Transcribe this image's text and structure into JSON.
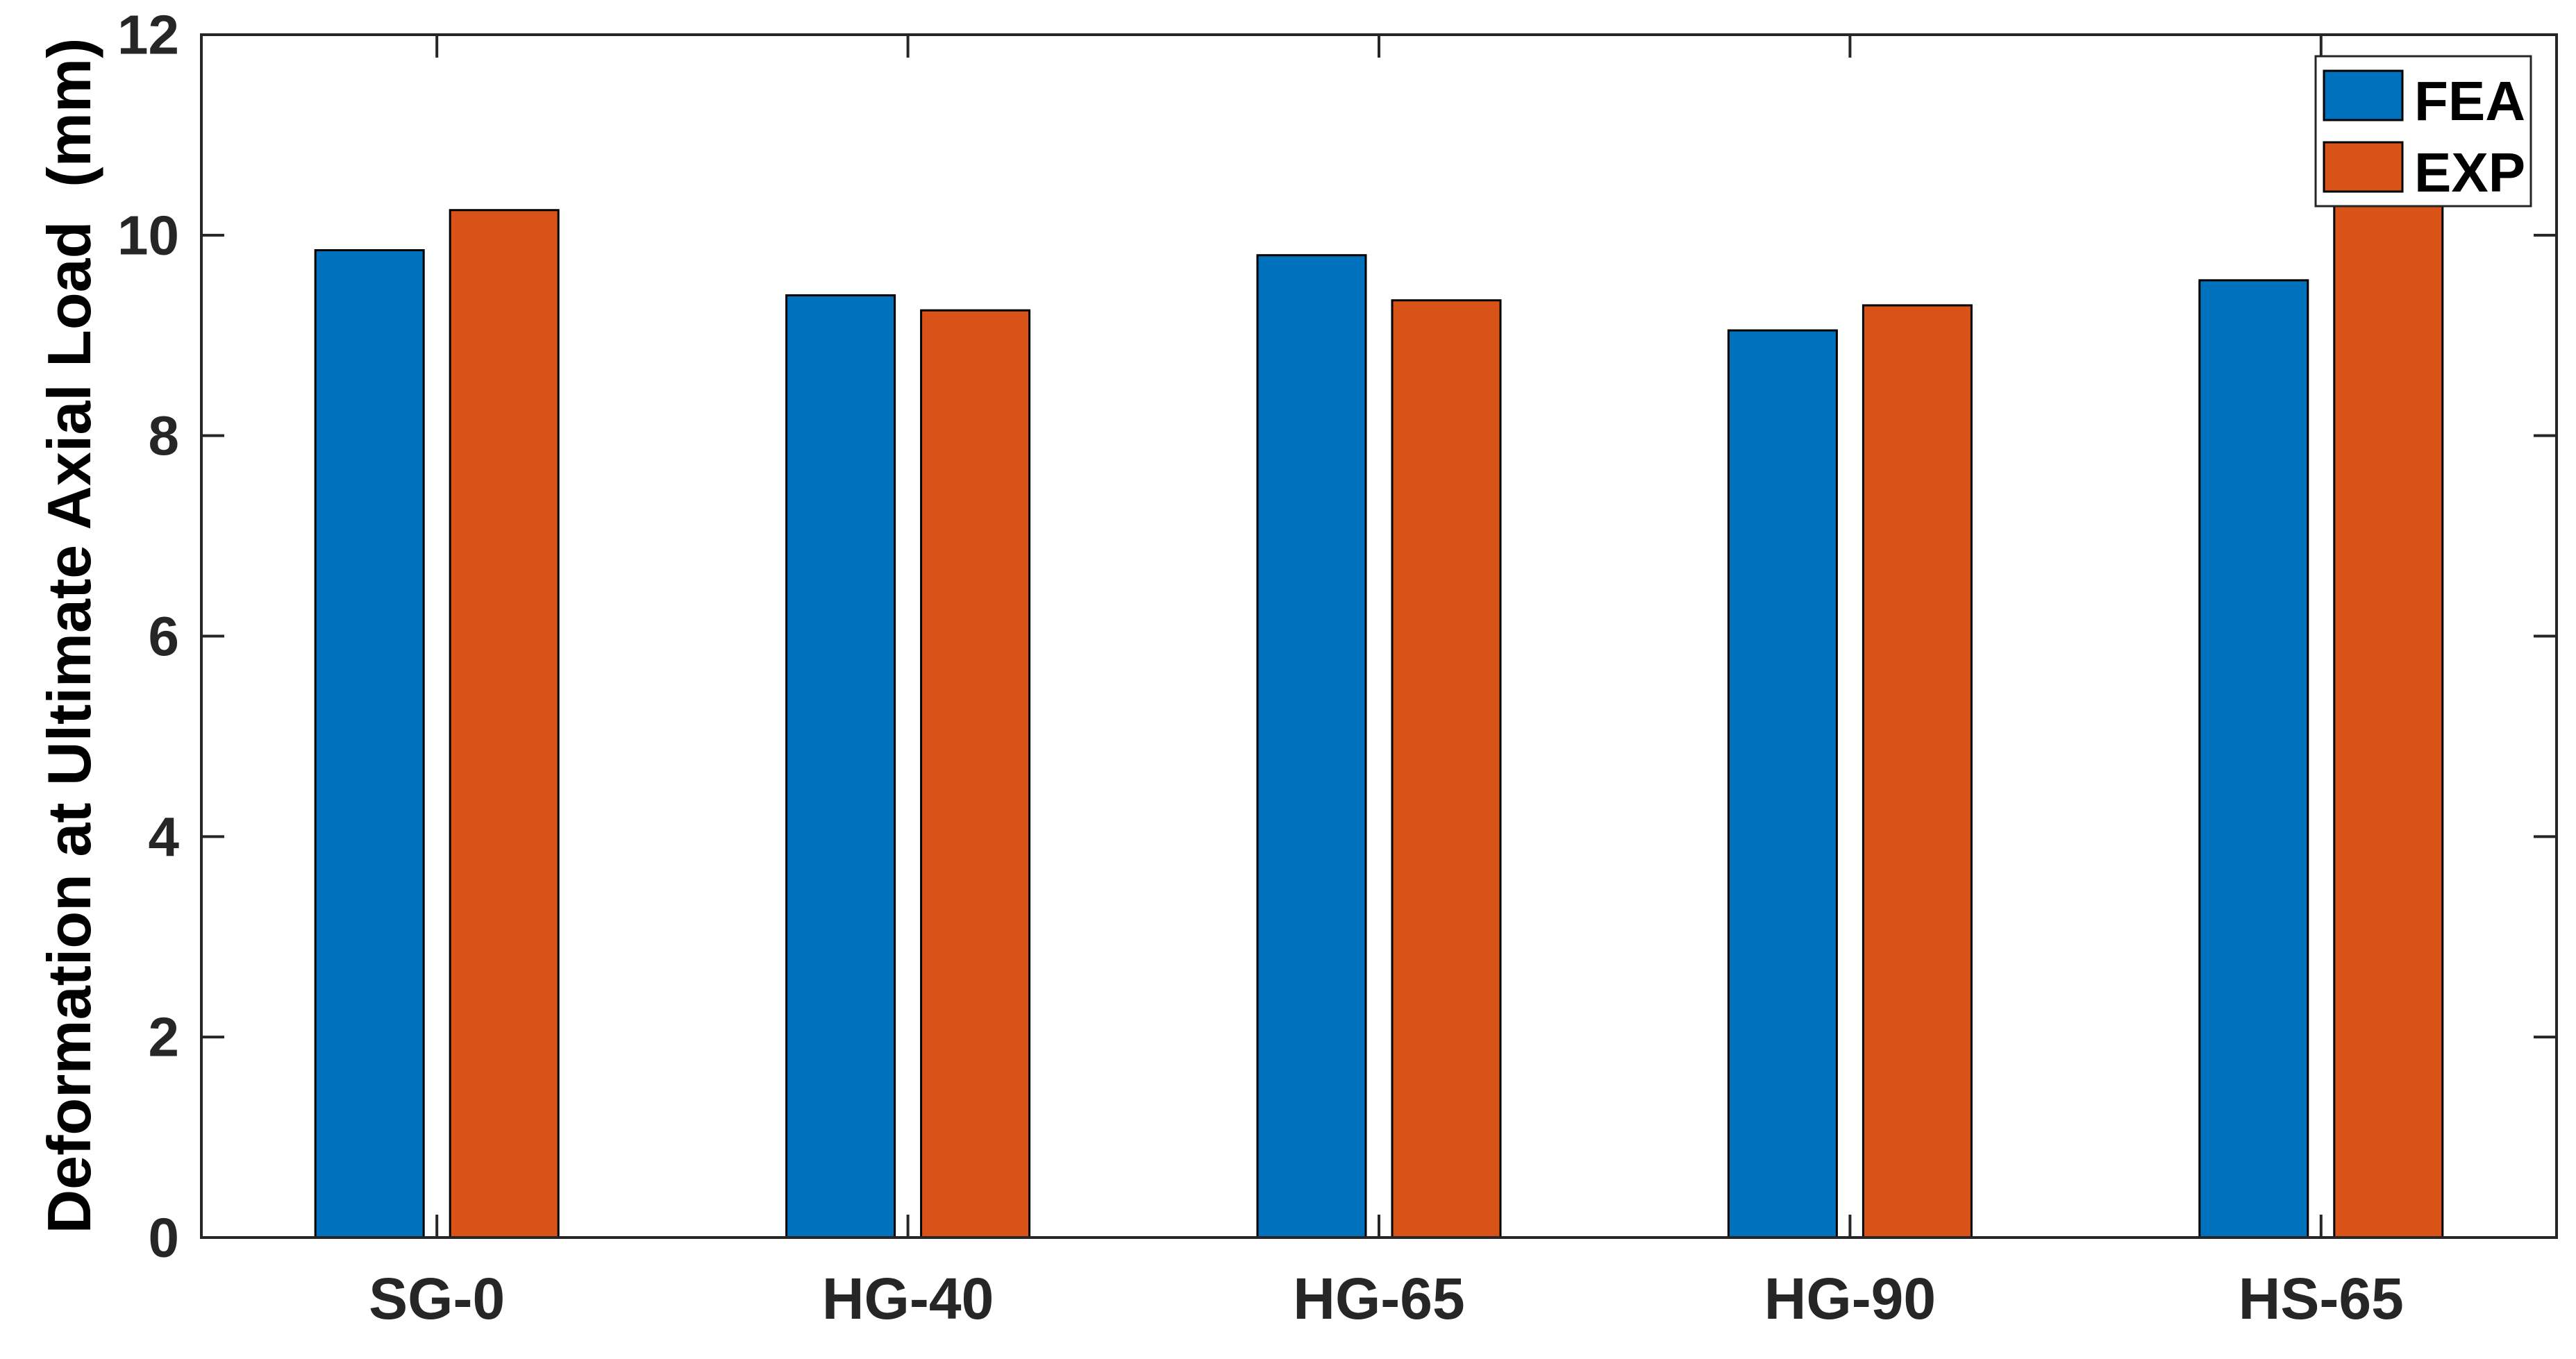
{
  "chart_data": {
    "type": "bar",
    "title": "",
    "xlabel": "",
    "ylabel": "Deformation at Ultimate Axial Load  (mm)",
    "categories": [
      "SG-0",
      "HG-40",
      "HG-65",
      "HG-90",
      "HS-65"
    ],
    "series": [
      {
        "name": "FEA",
        "color": "#0072BD",
        "values": [
          9.85,
          9.4,
          9.8,
          9.05,
          9.55
        ]
      },
      {
        "name": "EXP",
        "color": "#D95319",
        "values": [
          10.25,
          9.25,
          9.35,
          9.3,
          10.6
        ]
      }
    ],
    "ylim": [
      0,
      12
    ],
    "yticks": [
      0,
      2,
      4,
      6,
      8,
      10,
      12
    ],
    "grid": false,
    "legend_position": "top-right",
    "axis_color": "#262626",
    "bar_edge_color": "#000000",
    "text_color": "#000000",
    "background_color": "#ffffff"
  }
}
